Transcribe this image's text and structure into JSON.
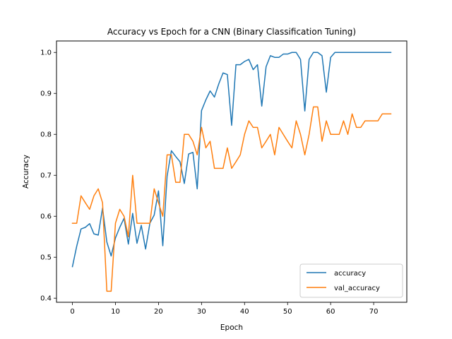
{
  "chart_data": {
    "type": "line",
    "title": "Accuracy vs Epoch for a CNN (Binary Classification Tuning)",
    "xlabel": "Epoch",
    "ylabel": "Accuracy",
    "xlim": [
      -3.7,
      77.7
    ],
    "ylim": [
      0.39,
      1.028
    ],
    "xticks": [
      0,
      10,
      20,
      30,
      40,
      50,
      60,
      70
    ],
    "yticks": [
      0.4,
      0.5,
      0.6,
      0.7,
      0.8,
      0.9,
      1.0
    ],
    "ytick_labels": [
      "0.4",
      "0.5",
      "0.6",
      "0.7",
      "0.8",
      "0.9",
      "1.0"
    ],
    "legend": "lower-right",
    "series": [
      {
        "name": "accuracy",
        "color": "#1f77b4",
        "values": [
          0.477,
          0.527,
          0.569,
          0.573,
          0.582,
          0.557,
          0.554,
          0.62,
          0.537,
          0.503,
          0.547,
          0.573,
          0.595,
          0.532,
          0.607,
          0.534,
          0.578,
          0.52,
          0.583,
          0.603,
          0.662,
          0.528,
          0.698,
          0.76,
          0.746,
          0.733,
          0.68,
          0.752,
          0.756,
          0.667,
          0.858,
          0.884,
          0.906,
          0.891,
          0.923,
          0.95,
          0.946,
          0.822,
          0.97,
          0.97,
          0.978,
          0.983,
          0.958,
          0.97,
          0.869,
          0.965,
          0.992,
          0.988,
          0.988,
          0.996,
          0.996,
          1.0,
          1.0,
          0.983,
          0.857,
          0.983,
          1.0,
          1.0,
          0.992,
          0.903,
          0.988,
          1.0,
          1.0,
          1.0,
          1.0,
          1.0,
          1.0,
          1.0,
          1.0,
          1.0,
          1.0,
          1.0,
          1.0,
          1.0,
          1.0
        ]
      },
      {
        "name": "val_accuracy",
        "color": "#ff7f0e",
        "values": [
          0.583,
          0.583,
          0.65,
          0.633,
          0.617,
          0.65,
          0.667,
          0.633,
          0.417,
          0.417,
          0.583,
          0.617,
          0.6,
          0.55,
          0.7,
          0.583,
          0.583,
          0.583,
          0.583,
          0.667,
          0.633,
          0.6,
          0.75,
          0.75,
          0.683,
          0.683,
          0.8,
          0.8,
          0.783,
          0.75,
          0.817,
          0.767,
          0.783,
          0.717,
          0.717,
          0.717,
          0.767,
          0.717,
          0.733,
          0.75,
          0.8,
          0.833,
          0.817,
          0.817,
          0.767,
          0.783,
          0.8,
          0.75,
          0.817,
          0.8,
          0.783,
          0.767,
          0.833,
          0.8,
          0.75,
          0.8,
          0.867,
          0.867,
          0.783,
          0.833,
          0.8,
          0.8,
          0.8,
          0.833,
          0.8,
          0.85,
          0.817,
          0.817,
          0.833,
          0.833,
          0.833,
          0.833,
          0.85,
          0.85,
          0.85
        ]
      }
    ]
  }
}
